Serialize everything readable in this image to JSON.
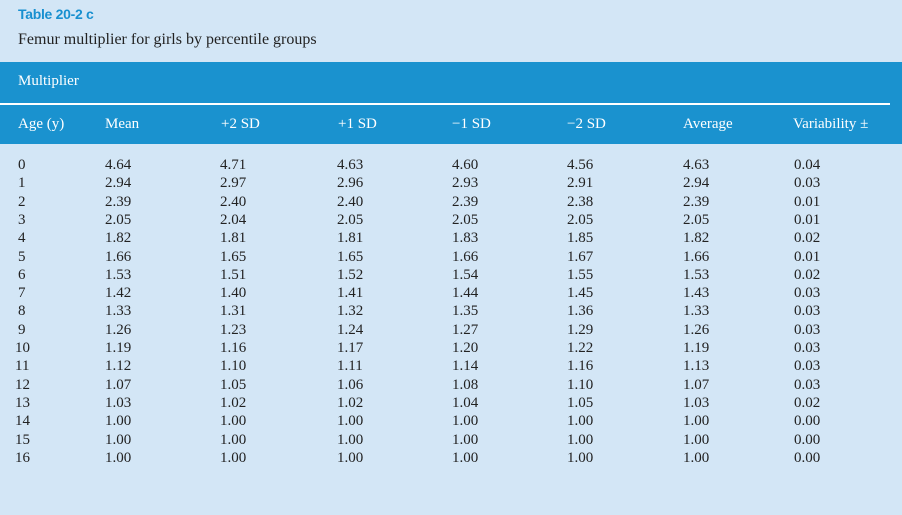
{
  "table": {
    "label": "Table 20-2 c",
    "caption": "Femur multiplier for girls by percentile groups",
    "group_header": "Multiplier",
    "columns": [
      "Age (y)",
      "Mean",
      "+2 SD",
      "+1 SD",
      "−1 SD",
      "−2 SD",
      "Average",
      "Variability ±"
    ],
    "rows": [
      [
        "0",
        "4.64",
        "4.71",
        "4.63",
        "4.60",
        "4.56",
        "4.63",
        "0.04"
      ],
      [
        "1",
        "2.94",
        "2.97",
        "2.96",
        "2.93",
        "2.91",
        "2.94",
        "0.03"
      ],
      [
        "2",
        "2.39",
        "2.40",
        "2.40",
        "2.39",
        "2.38",
        "2.39",
        "0.01"
      ],
      [
        "3",
        "2.05",
        "2.04",
        "2.05",
        "2.05",
        "2.05",
        "2.05",
        "0.01"
      ],
      [
        "4",
        "1.82",
        "1.81",
        "1.81",
        "1.83",
        "1.85",
        "1.82",
        "0.02"
      ],
      [
        "5",
        "1.66",
        "1.65",
        "1.65",
        "1.66",
        "1.67",
        "1.66",
        "0.01"
      ],
      [
        "6",
        "1.53",
        "1.51",
        "1.52",
        "1.54",
        "1.55",
        "1.53",
        "0.02"
      ],
      [
        "7",
        "1.42",
        "1.40",
        "1.41",
        "1.44",
        "1.45",
        "1.43",
        "0.03"
      ],
      [
        "8",
        "1.33",
        "1.31",
        "1.32",
        "1.35",
        "1.36",
        "1.33",
        "0.03"
      ],
      [
        "9",
        "1.26",
        "1.23",
        "1.24",
        "1.27",
        "1.29",
        "1.26",
        "0.03"
      ],
      [
        "10",
        "1.19",
        "1.16",
        "1.17",
        "1.20",
        "1.22",
        "1.19",
        "0.03"
      ],
      [
        "11",
        "1.12",
        "1.10",
        "1.11",
        "1.14",
        "1.16",
        "1.13",
        "0.03"
      ],
      [
        "12",
        "1.07",
        "1.05",
        "1.06",
        "1.08",
        "1.10",
        "1.07",
        "0.03"
      ],
      [
        "13",
        "1.03",
        "1.02",
        "1.02",
        "1.04",
        "1.05",
        "1.03",
        "0.02"
      ],
      [
        "14",
        "1.00",
        "1.00",
        "1.00",
        "1.00",
        "1.00",
        "1.00",
        "0.00"
      ],
      [
        "15",
        "1.00",
        "1.00",
        "1.00",
        "1.00",
        "1.00",
        "1.00",
        "0.00"
      ],
      [
        "16",
        "1.00",
        "1.00",
        "1.00",
        "1.00",
        "1.00",
        "1.00",
        "0.00"
      ]
    ]
  },
  "colors": {
    "accent": "#1a92cf",
    "background": "#d3e6f6"
  }
}
